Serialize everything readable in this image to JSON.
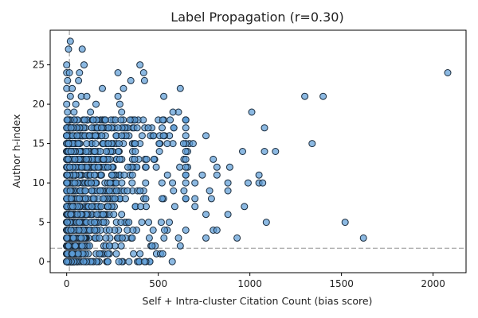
{
  "chart_data": {
    "type": "scatter",
    "title": "Label Propagation (r=0.30)",
    "xlabel": "Self + Intra-cluster Citation Count (bias score)",
    "ylabel": "Author h-index",
    "xlim": [
      -90,
      2180
    ],
    "ylim": [
      -1.4,
      29.4
    ],
    "xticks": [
      0,
      500,
      1000,
      1500,
      2000
    ],
    "yticks": [
      0,
      5,
      10,
      15,
      20,
      25
    ],
    "grid": false,
    "legend": "none",
    "reference_lines": [
      {
        "orientation": "vertical",
        "value": 15,
        "style": "dashed"
      },
      {
        "orientation": "horizontal",
        "value": 1.7,
        "style": "dashed"
      }
    ],
    "marker": {
      "fill": "#5b9bd5",
      "edge": "#1a2b3c"
    },
    "reference_line_color": "#b0b0b0",
    "dense_region": {
      "x_max": 650,
      "y_max": 18,
      "approx_points": 1600
    },
    "points": [
      {
        "x": 20,
        "y": 28
      },
      {
        "x": 10,
        "y": 27
      },
      {
        "x": 85,
        "y": 27
      },
      {
        "x": 0,
        "y": 25
      },
      {
        "x": 95,
        "y": 25
      },
      {
        "x": 400,
        "y": 25
      },
      {
        "x": 0,
        "y": 24
      },
      {
        "x": 15,
        "y": 24
      },
      {
        "x": 70,
        "y": 24
      },
      {
        "x": 280,
        "y": 24
      },
      {
        "x": 420,
        "y": 24
      },
      {
        "x": 2080,
        "y": 24
      },
      {
        "x": 5,
        "y": 23
      },
      {
        "x": 65,
        "y": 23
      },
      {
        "x": 350,
        "y": 23
      },
      {
        "x": 425,
        "y": 23
      },
      {
        "x": 0,
        "y": 22
      },
      {
        "x": 30,
        "y": 22
      },
      {
        "x": 195,
        "y": 22
      },
      {
        "x": 310,
        "y": 22
      },
      {
        "x": 620,
        "y": 22
      },
      {
        "x": 20,
        "y": 21
      },
      {
        "x": 80,
        "y": 21
      },
      {
        "x": 110,
        "y": 21
      },
      {
        "x": 280,
        "y": 21
      },
      {
        "x": 530,
        "y": 21
      },
      {
        "x": 1300,
        "y": 21
      },
      {
        "x": 1400,
        "y": 21
      },
      {
        "x": 290,
        "y": 20
      },
      {
        "x": 610,
        "y": 19
      },
      {
        "x": 580,
        "y": 19
      },
      {
        "x": 1010,
        "y": 19
      },
      {
        "x": 185,
        "y": 18
      },
      {
        "x": 255,
        "y": 18
      },
      {
        "x": 500,
        "y": 18
      },
      {
        "x": 360,
        "y": 17
      },
      {
        "x": 1080,
        "y": 17
      },
      {
        "x": 760,
        "y": 16
      },
      {
        "x": 470,
        "y": 16
      },
      {
        "x": 400,
        "y": 15
      },
      {
        "x": 580,
        "y": 15
      },
      {
        "x": 670,
        "y": 15
      },
      {
        "x": 690,
        "y": 15
      },
      {
        "x": 1340,
        "y": 15
      },
      {
        "x": 360,
        "y": 14
      },
      {
        "x": 660,
        "y": 14
      },
      {
        "x": 960,
        "y": 14
      },
      {
        "x": 1080,
        "y": 14
      },
      {
        "x": 1140,
        "y": 14
      },
      {
        "x": 640,
        "y": 13
      },
      {
        "x": 800,
        "y": 13
      },
      {
        "x": 820,
        "y": 12
      },
      {
        "x": 890,
        "y": 12
      },
      {
        "x": 550,
        "y": 11
      },
      {
        "x": 740,
        "y": 11
      },
      {
        "x": 820,
        "y": 11
      },
      {
        "x": 1050,
        "y": 11
      },
      {
        "x": 660,
        "y": 12
      },
      {
        "x": 700,
        "y": 10
      },
      {
        "x": 880,
        "y": 10
      },
      {
        "x": 990,
        "y": 10
      },
      {
        "x": 1050,
        "y": 10
      },
      {
        "x": 1070,
        "y": 10
      },
      {
        "x": 880,
        "y": 9
      },
      {
        "x": 780,
        "y": 9
      },
      {
        "x": 790,
        "y": 8
      },
      {
        "x": 700,
        "y": 7
      },
      {
        "x": 970,
        "y": 7
      },
      {
        "x": 760,
        "y": 6
      },
      {
        "x": 880,
        "y": 6
      },
      {
        "x": 700,
        "y": 8
      },
      {
        "x": 1090,
        "y": 5
      },
      {
        "x": 1520,
        "y": 5
      },
      {
        "x": 800,
        "y": 4
      },
      {
        "x": 820,
        "y": 4
      },
      {
        "x": 760,
        "y": 3
      },
      {
        "x": 930,
        "y": 3
      },
      {
        "x": 1620,
        "y": 3
      },
      {
        "x": 620,
        "y": 2
      },
      {
        "x": 460,
        "y": 2
      },
      {
        "x": 400,
        "y": 1
      },
      {
        "x": 490,
        "y": 1
      },
      {
        "x": 610,
        "y": 3
      },
      {
        "x": 560,
        "y": 5
      },
      {
        "x": 640,
        "y": 9
      },
      {
        "x": 590,
        "y": 7
      },
      {
        "x": 520,
        "y": 10
      },
      {
        "x": 480,
        "y": 13
      },
      {
        "x": 430,
        "y": 12
      },
      {
        "x": 340,
        "y": 16
      },
      {
        "x": 300,
        "y": 19
      },
      {
        "x": 230,
        "y": 17
      },
      {
        "x": 160,
        "y": 20
      },
      {
        "x": 130,
        "y": 19
      },
      {
        "x": 140,
        "y": 18
      },
      {
        "x": 50,
        "y": 20
      },
      {
        "x": 40,
        "y": 19
      },
      {
        "x": 60,
        "y": 18
      },
      {
        "x": 75,
        "y": 17
      },
      {
        "x": 0,
        "y": 20
      },
      {
        "x": 5,
        "y": 19
      },
      {
        "x": 10,
        "y": 18
      }
    ]
  }
}
